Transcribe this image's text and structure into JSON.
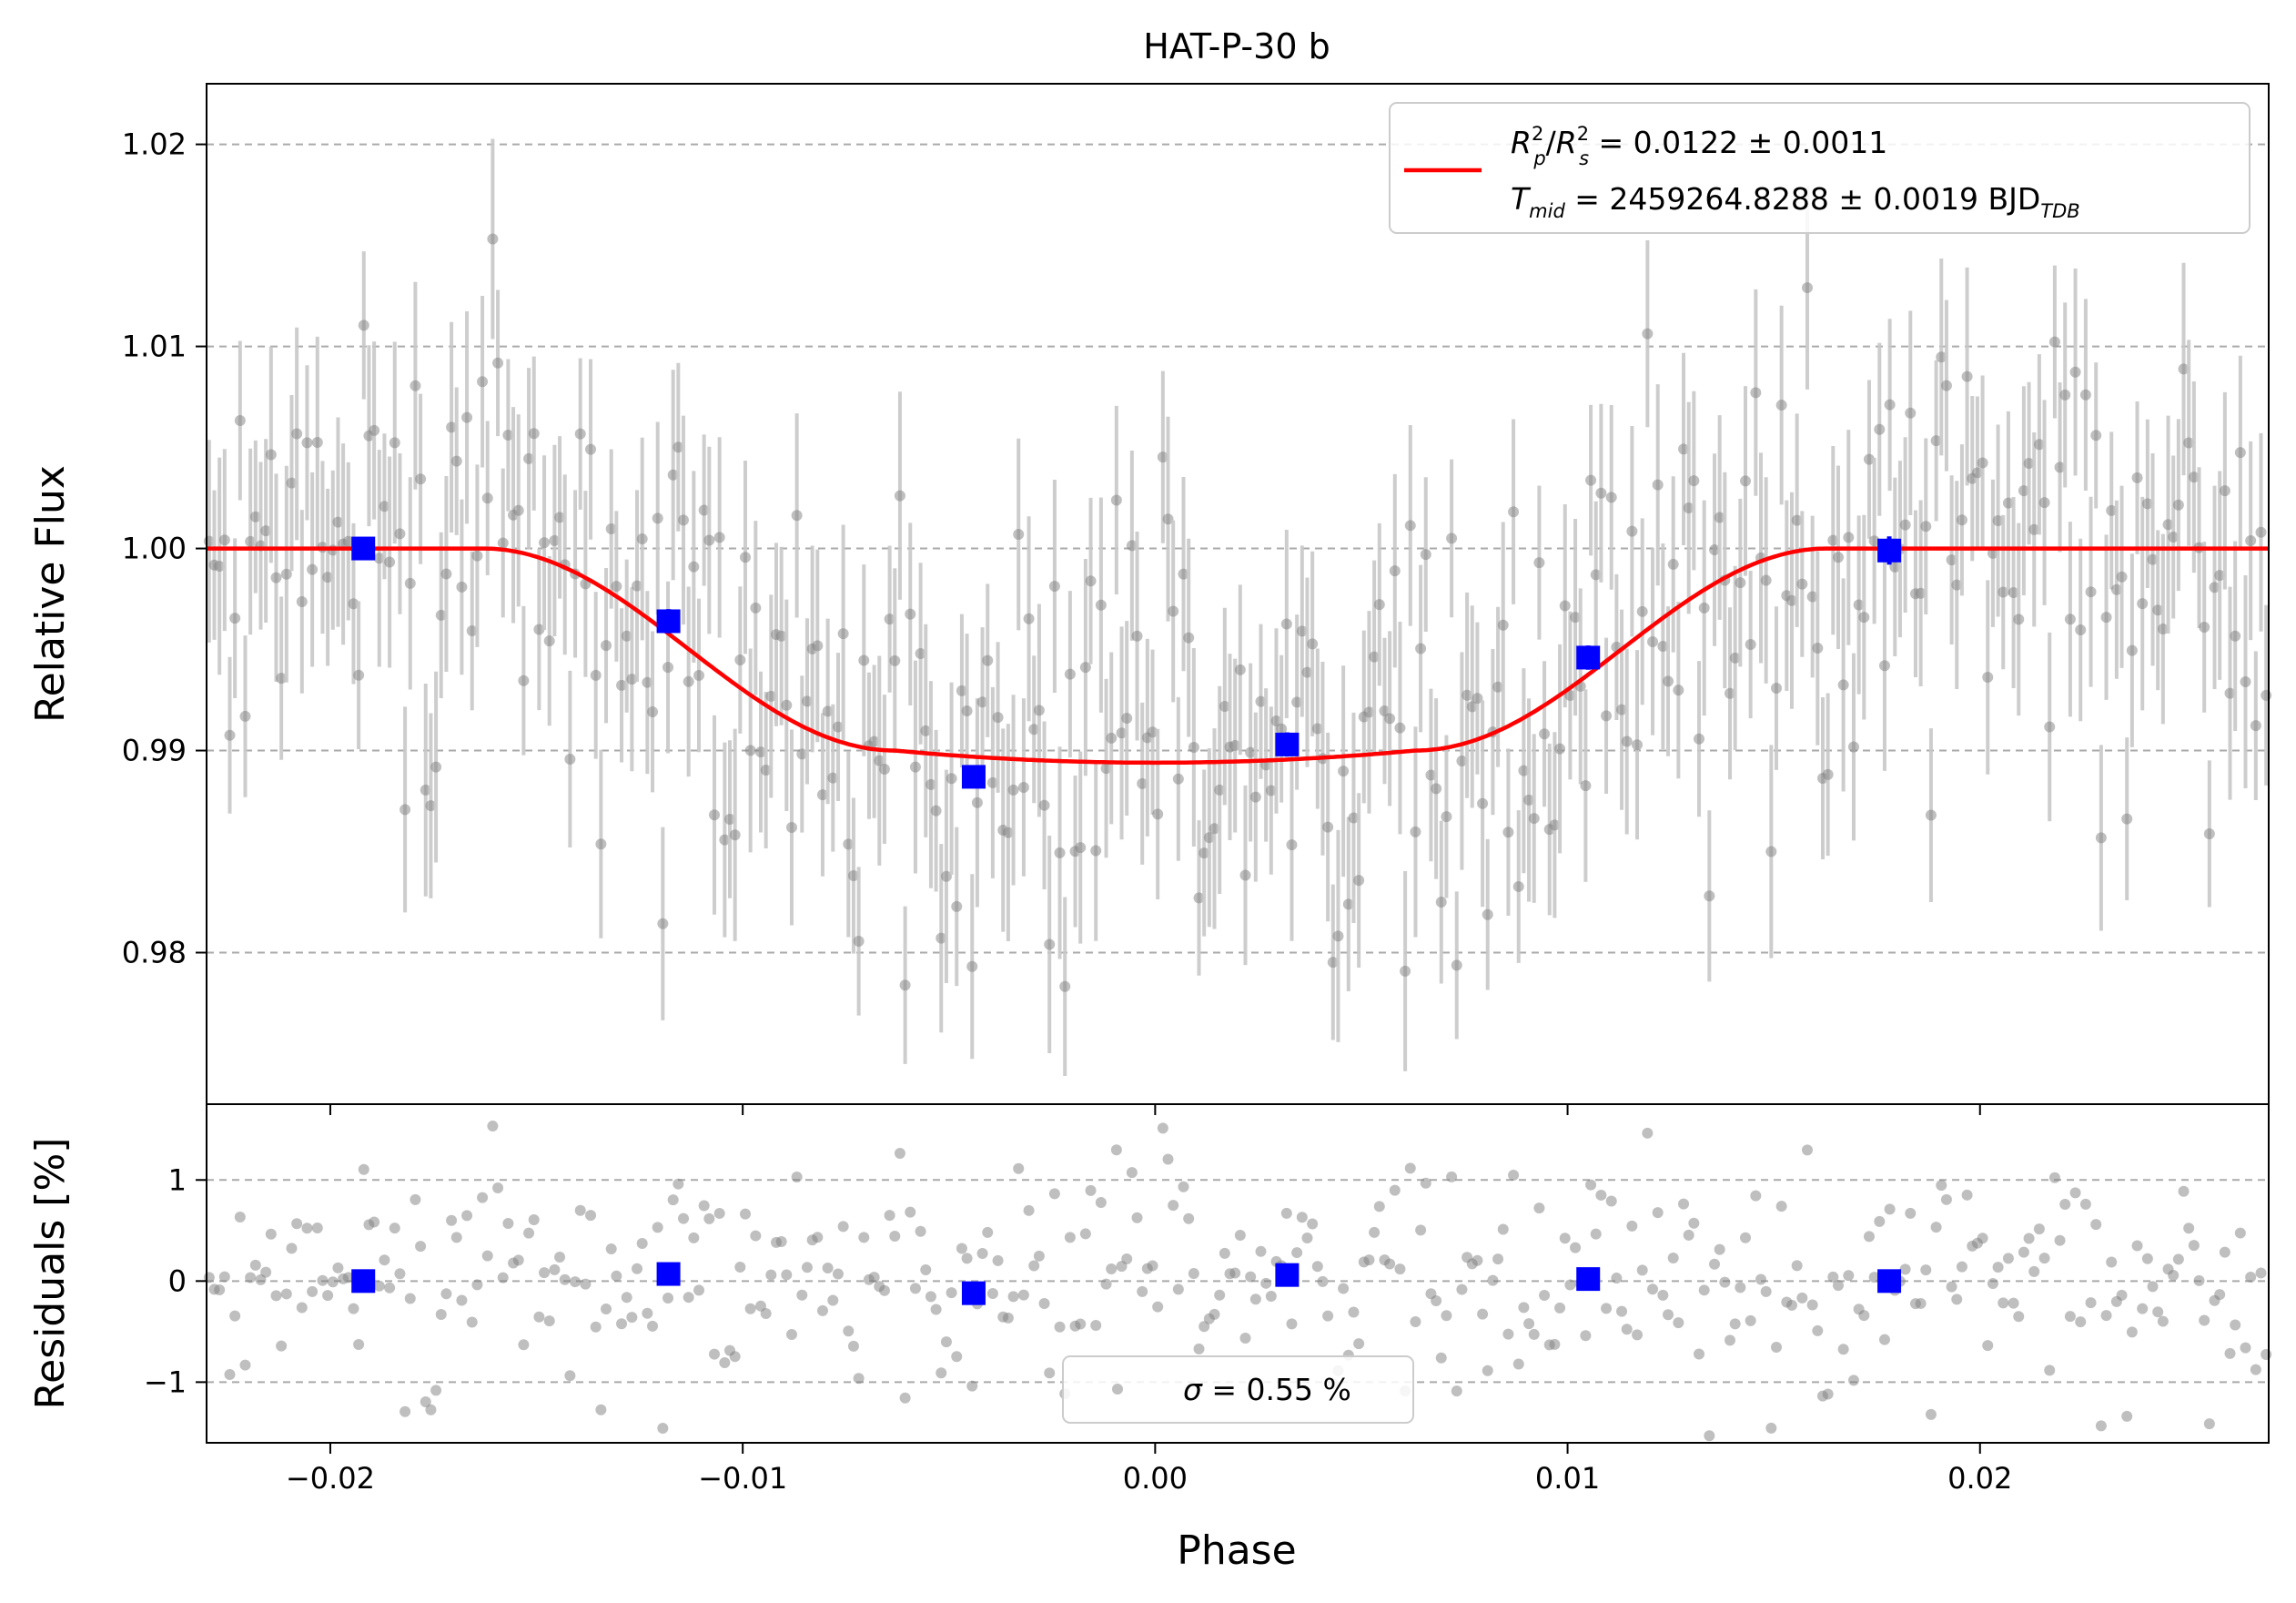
{
  "chart_data": [
    {
      "type": "scatter",
      "title": "HAT-P-30 b",
      "xlabel": "",
      "ylabel": "Relative Flux",
      "xlim": [
        -0.023,
        0.027
      ],
      "ylim": [
        0.9725,
        1.023
      ],
      "xticks": [
        "−0.02",
        "−0.01",
        "0.00",
        "0.01",
        "0.02"
      ],
      "yticks": [
        "0.98",
        "0.99",
        "1.00",
        "1.01",
        "1.02"
      ],
      "grid": "horizontal dashed",
      "legend_position": "top-right",
      "legend": {
        "line1": {
          "a": "R",
          "a_sup": "2",
          "a_sub": "p",
          "slash": "/",
          "b": "R",
          "b_sup": "2",
          "b_sub": "s",
          "rest": " = 0.0122 ± 0.0011"
        },
        "line2": {
          "a": "T",
          "a_sub": "mid",
          "rest": " = 2459264.8288 ± 0.0019 BJD",
          "unit_sub": "TDB"
        }
      },
      "model": {
        "name": "transit model",
        "color": "#ff0000",
        "baseline": 1.0,
        "depth": 0.0106,
        "t1": -0.0163,
        "t2": -0.0063,
        "t3": 0.0063,
        "t4": 0.0163,
        "limb_curvature": 0.0006
      },
      "binned": {
        "color": "#0000ff",
        "x": [
          -0.0192,
          -0.0118,
          -0.0044,
          0.0032,
          0.0105,
          0.0178
        ],
        "y": [
          1.0,
          0.9964,
          0.9887,
          0.9903,
          0.9946,
          0.9999
        ],
        "yerr": [
          0.0005,
          0.0006,
          0.0005,
          0.0006,
          0.0006,
          0.0007
        ]
      },
      "raw": {
        "color": "#808080",
        "errbar_color": "#c8c8c8",
        "n_points": 400,
        "scatter_sigma": 0.0055,
        "errbar_half_height": 0.0045
      }
    },
    {
      "type": "scatter",
      "title": "",
      "xlabel": "Phase",
      "ylabel": "Residuals [%]",
      "xlim": [
        -0.023,
        0.027
      ],
      "ylim": [
        -1.6,
        1.75
      ],
      "xticks": [
        "−0.02",
        "−0.01",
        "0.00",
        "0.01",
        "0.02"
      ],
      "yticks": [
        "−1",
        "0",
        "1"
      ],
      "grid": "horizontal dashed",
      "legend_position": "bottom-center",
      "legend": {
        "sigma_symbol": "σ",
        "text": " = 0.55 %"
      },
      "binned": {
        "color": "#0000ff",
        "x": [
          -0.0192,
          -0.0118,
          -0.0044,
          0.0032,
          0.0105,
          0.0178
        ],
        "y": [
          0.0,
          0.07,
          -0.12,
          0.06,
          0.02,
          0.0
        ]
      },
      "raw": {
        "color": "#808080",
        "sigma": 0.55
      }
    }
  ]
}
